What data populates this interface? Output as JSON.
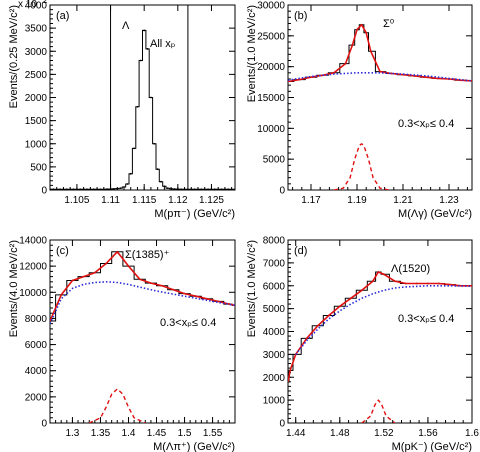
{
  "chart_data": [
    {
      "type": "line",
      "panel_label": "(a)",
      "scale_note": "x 10",
      "scale_exp": "2",
      "xlabel": "M(pπ⁻)  (GeV/c²)",
      "ylabel": "Events/(0.25 MeV/c²)",
      "xlim": [
        1.101,
        1.1285
      ],
      "ylim": [
        0,
        4000
      ],
      "x_ticks": [
        1.105,
        1.11,
        1.115,
        1.12,
        1.125
      ],
      "x_tick_labels": [
        "1.105",
        "1.11",
        "1.115",
        "1.12",
        "1.125"
      ],
      "y_ticks": [
        0,
        500,
        1000,
        1500,
        2000,
        2500,
        3000,
        3500,
        4000
      ],
      "y_tick_labels": [
        "0",
        "500",
        "1000",
        "1500",
        "2000",
        "2500",
        "3000",
        "3500",
        "4000"
      ],
      "annotations": [
        "Λ",
        "All xₚ"
      ],
      "cut_lines_x": [
        1.11,
        1.1215
      ],
      "series": [
        {
          "type": "step",
          "x": [
            1.101,
            1.1015,
            1.102,
            1.1025,
            1.103,
            1.1035,
            1.104,
            1.1045,
            1.105,
            1.1055,
            1.106,
            1.1065,
            1.107,
            1.1075,
            1.108,
            1.1085,
            1.109,
            1.1095,
            1.11,
            1.1105,
            1.111,
            1.1115,
            1.112,
            1.1125,
            1.113,
            1.1135,
            1.114,
            1.1145,
            1.115,
            1.1155,
            1.116,
            1.1165,
            1.117,
            1.1175,
            1.118,
            1.1185,
            1.119,
            1.1195,
            1.12,
            1.1205,
            1.121,
            1.1215,
            1.122,
            1.1225,
            1.123,
            1.1235,
            1.124,
            1.1245,
            1.125,
            1.1255,
            1.126,
            1.1265,
            1.127,
            1.1275,
            1.128
          ],
          "y": [
            15,
            15,
            15,
            15,
            15,
            15,
            15,
            15,
            15,
            15,
            15,
            15,
            15,
            15,
            15,
            16,
            17,
            19,
            22,
            25,
            30,
            40,
            65,
            130,
            350,
            900,
            1800,
            2800,
            3450,
            3050,
            2000,
            1000,
            450,
            180,
            80,
            40,
            28,
            22,
            19,
            17,
            16,
            15,
            15,
            15,
            15,
            15,
            15,
            15,
            15,
            15,
            15,
            15,
            15,
            15,
            15
          ]
        }
      ]
    },
    {
      "type": "line",
      "panel_label": "(b)",
      "xlabel": "M(Λγ)  (GeV/c²)",
      "ylabel": "Events/(1.0 MeV/c²)",
      "xlim": [
        1.16,
        1.24
      ],
      "ylim": [
        0,
        30000
      ],
      "x_ticks": [
        1.17,
        1.19,
        1.21,
        1.23
      ],
      "x_tick_labels": [
        "1.17",
        "1.19",
        "1.21",
        "1.23"
      ],
      "y_ticks": [
        0,
        5000,
        10000,
        15000,
        20000,
        25000,
        30000
      ],
      "y_tick_labels": [
        "0",
        "5000",
        "10000",
        "15000",
        "20000",
        "25000",
        "30000"
      ],
      "annotations": [
        "Σ⁰",
        "0.3<xₚ≤ 0.4"
      ],
      "series": [
        {
          "name": "data",
          "type": "step",
          "x": [
            1.16,
            1.165,
            1.17,
            1.175,
            1.18,
            1.185,
            1.188,
            1.19,
            1.192,
            1.194,
            1.196,
            1.2,
            1.205,
            1.21,
            1.215,
            1.22,
            1.225,
            1.23,
            1.235,
            1.24
          ],
          "y": [
            17600,
            17900,
            18300,
            18600,
            19000,
            20500,
            23500,
            26000,
            26800,
            25500,
            22500,
            19200,
            18900,
            18700,
            18500,
            18300,
            18100,
            18000,
            17800,
            17700
          ]
        },
        {
          "name": "total fit",
          "type": "line",
          "x": [
            1.16,
            1.165,
            1.17,
            1.175,
            1.18,
            1.185,
            1.188,
            1.19,
            1.192,
            1.194,
            1.196,
            1.2,
            1.205,
            1.21,
            1.215,
            1.22,
            1.225,
            1.23,
            1.235,
            1.24
          ],
          "y": [
            17600,
            17900,
            18300,
            18600,
            19000,
            20500,
            23500,
            26000,
            26800,
            25500,
            22500,
            19200,
            18900,
            18700,
            18500,
            18300,
            18100,
            18000,
            17800,
            17700
          ]
        },
        {
          "name": "background",
          "type": "line",
          "x": [
            1.16,
            1.17,
            1.18,
            1.19,
            1.2,
            1.21,
            1.22,
            1.23,
            1.24
          ],
          "y": [
            17800,
            18400,
            18800,
            19000,
            19000,
            18800,
            18500,
            18100,
            17700
          ]
        },
        {
          "name": "signal",
          "type": "line",
          "x": [
            1.18,
            1.184,
            1.187,
            1.189,
            1.191,
            1.192,
            1.193,
            1.195,
            1.197,
            1.2,
            1.204
          ],
          "y": [
            0,
            300,
            2000,
            5000,
            7200,
            7500,
            7200,
            5000,
            2000,
            300,
            0
          ]
        }
      ]
    },
    {
      "type": "line",
      "panel_label": "(c)",
      "xlabel": "M(Λπ⁺)  (GeV/c²)",
      "ylabel": "Events/(4.0 MeV/c²)",
      "xlim": [
        1.26,
        1.59
      ],
      "ylim": [
        0,
        14000
      ],
      "x_ticks": [
        1.3,
        1.35,
        1.4,
        1.45,
        1.5,
        1.55
      ],
      "x_tick_labels": [
        "1.3",
        "1.35",
        "1.4",
        "1.45",
        "1.5",
        "1.55"
      ],
      "y_ticks": [
        0,
        2000,
        4000,
        6000,
        8000,
        10000,
        12000,
        14000
      ],
      "y_tick_labels": [
        "0",
        "2000",
        "4000",
        "6000",
        "8000",
        "10000",
        "12000",
        "14000"
      ],
      "annotations": [
        "Σ(1385)⁺",
        "0.3<xₚ≤ 0.4"
      ],
      "series": [
        {
          "name": "data",
          "type": "step",
          "x": [
            1.26,
            1.28,
            1.3,
            1.32,
            1.34,
            1.36,
            1.38,
            1.4,
            1.42,
            1.44,
            1.46,
            1.48,
            1.5,
            1.52,
            1.54,
            1.56,
            1.58,
            1.59
          ],
          "y": [
            7800,
            9800,
            10900,
            11200,
            11500,
            12200,
            13100,
            12000,
            11000,
            10700,
            10500,
            10200,
            9900,
            9700,
            9500,
            9300,
            9100,
            9000
          ]
        },
        {
          "name": "total fit",
          "type": "line",
          "x": [
            1.26,
            1.28,
            1.3,
            1.32,
            1.34,
            1.36,
            1.38,
            1.4,
            1.42,
            1.44,
            1.46,
            1.48,
            1.5,
            1.52,
            1.54,
            1.56,
            1.58,
            1.59
          ],
          "y": [
            7800,
            9800,
            10900,
            11200,
            11500,
            12200,
            13100,
            12000,
            11000,
            10700,
            10500,
            10200,
            9900,
            9700,
            9500,
            9300,
            9100,
            9000
          ]
        },
        {
          "name": "background",
          "type": "line",
          "x": [
            1.26,
            1.28,
            1.3,
            1.32,
            1.34,
            1.36,
            1.38,
            1.4,
            1.42,
            1.45,
            1.5,
            1.55,
            1.59
          ],
          "y": [
            7600,
            9500,
            10300,
            10600,
            10750,
            10800,
            10750,
            10600,
            10400,
            10100,
            9700,
            9300,
            9000
          ]
        },
        {
          "name": "signal",
          "type": "line",
          "x": [
            1.33,
            1.35,
            1.36,
            1.37,
            1.38,
            1.39,
            1.4,
            1.41,
            1.43
          ],
          "y": [
            0,
            400,
            1200,
            2200,
            2600,
            2200,
            1200,
            400,
            0
          ]
        }
      ]
    },
    {
      "type": "line",
      "panel_label": "(d)",
      "xlabel": "M(pK⁻)  (GeV/c²)",
      "ylabel": "Events/(1.0 MeV/c²)",
      "xlim": [
        1.433,
        1.6
      ],
      "ylim": [
        0,
        8000
      ],
      "x_ticks": [
        1.44,
        1.48,
        1.52,
        1.56,
        1.6
      ],
      "x_tick_labels": [
        "1.44",
        "1.48",
        "1.52",
        "1.56",
        "1.6"
      ],
      "y_ticks": [
        0,
        1000,
        2000,
        3000,
        4000,
        5000,
        6000,
        7000,
        8000
      ],
      "y_tick_labels": [
        "0",
        "1000",
        "2000",
        "3000",
        "4000",
        "5000",
        "6000",
        "7000",
        "8000"
      ],
      "annotations": [
        "Λ(1520)",
        "0.3<xₚ≤ 0.4"
      ],
      "series": [
        {
          "name": "data",
          "type": "step",
          "x": [
            1.433,
            1.435,
            1.44,
            1.45,
            1.46,
            1.47,
            1.48,
            1.49,
            1.5,
            1.51,
            1.515,
            1.52,
            1.53,
            1.54,
            1.55,
            1.56,
            1.57,
            1.58,
            1.59,
            1.6
          ],
          "y": [
            1800,
            2300,
            3000,
            3700,
            4250,
            4700,
            5100,
            5450,
            5800,
            6200,
            6600,
            6500,
            6200,
            6100,
            6100,
            6100,
            6100,
            6050,
            6000,
            6000
          ]
        },
        {
          "name": "total fit",
          "type": "line",
          "x": [
            1.433,
            1.435,
            1.44,
            1.45,
            1.46,
            1.47,
            1.48,
            1.49,
            1.5,
            1.51,
            1.515,
            1.52,
            1.53,
            1.54,
            1.55,
            1.56,
            1.57,
            1.58,
            1.59,
            1.6
          ],
          "y": [
            1800,
            2300,
            3000,
            3700,
            4250,
            4700,
            5100,
            5450,
            5800,
            6200,
            6600,
            6500,
            6200,
            6100,
            6100,
            6100,
            6100,
            6050,
            6000,
            6000
          ]
        },
        {
          "name": "background",
          "type": "line",
          "x": [
            1.44,
            1.45,
            1.46,
            1.47,
            1.48,
            1.49,
            1.5,
            1.51,
            1.52,
            1.53,
            1.54,
            1.56,
            1.58,
            1.6
          ],
          "y": [
            3000,
            3600,
            4100,
            4550,
            4900,
            5200,
            5450,
            5650,
            5800,
            5900,
            5950,
            6000,
            6000,
            5980
          ]
        },
        {
          "name": "signal",
          "type": "line",
          "x": [
            1.5,
            1.508,
            1.512,
            1.515,
            1.518,
            1.522,
            1.53
          ],
          "y": [
            0,
            300,
            800,
            1000,
            800,
            300,
            0
          ]
        }
      ]
    }
  ],
  "colors": {
    "axis": "#000000",
    "fit": "#e01010",
    "background_fit": "#2b2bd9",
    "signal": "#e01010",
    "data": "#000000"
  }
}
